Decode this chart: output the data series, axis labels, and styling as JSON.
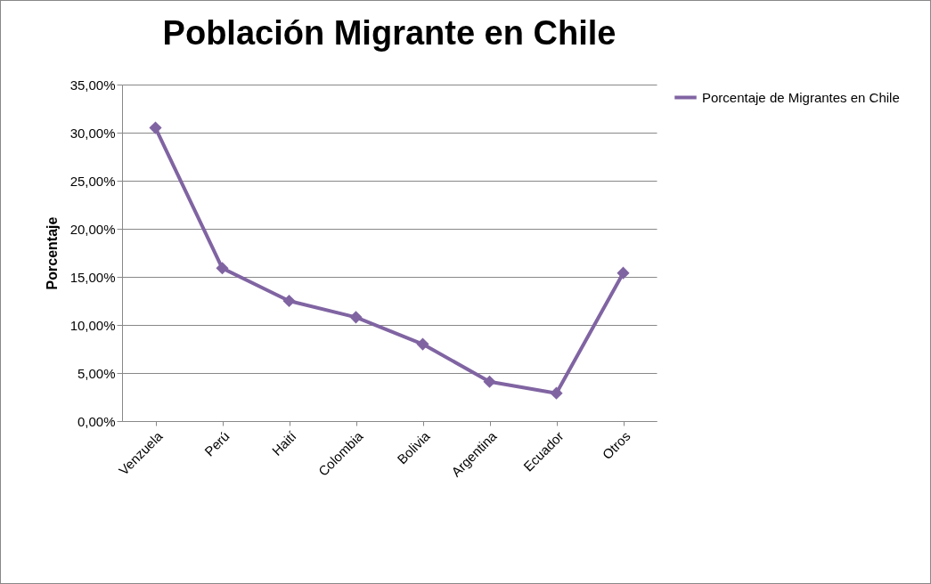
{
  "chart_data": {
    "type": "line",
    "title": "Población Migrante en Chile",
    "ylabel": "Porcentaje",
    "categories": [
      "Venzuela",
      "Perú",
      "Haití",
      "Colombia",
      "Bolivia",
      "Argentina",
      "Ecuador",
      "Otros"
    ],
    "series": [
      {
        "name": "Porcentaje de Migrantes en Chile",
        "color": "#8064a2",
        "values": [
          30.5,
          15.9,
          12.5,
          10.8,
          8.0,
          4.1,
          2.9,
          15.4
        ]
      }
    ],
    "ylim": [
      0,
      35
    ],
    "yticks": [
      {
        "value": 0,
        "label": "0,00%"
      },
      {
        "value": 5,
        "label": "5,00%"
      },
      {
        "value": 10,
        "label": "10,00%"
      },
      {
        "value": 15,
        "label": "15,00%"
      },
      {
        "value": 20,
        "label": "20,00%"
      },
      {
        "value": 25,
        "label": "25,00%"
      },
      {
        "value": 30,
        "label": "30,00%"
      },
      {
        "value": 35,
        "label": "35,00%"
      }
    ],
    "grid": "y",
    "legend": "right",
    "marker": "diamond",
    "line_style": "solid"
  }
}
